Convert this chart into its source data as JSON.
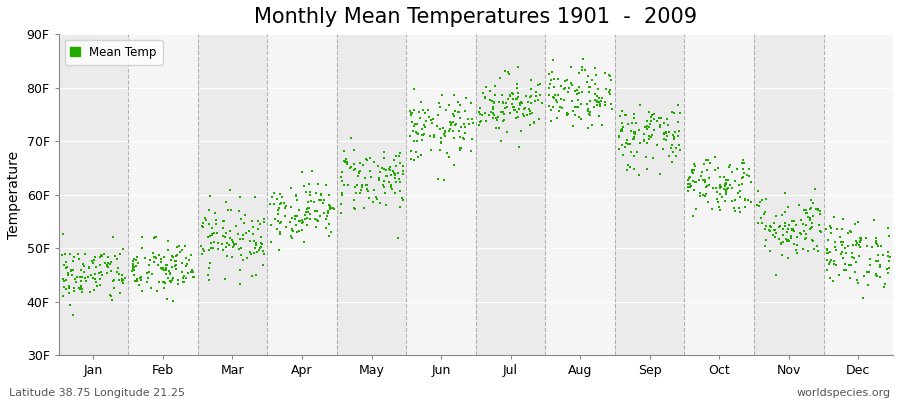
{
  "title": "Monthly Mean Temperatures 1901  -  2009",
  "ylabel": "Temperature",
  "xlabel": "",
  "ylim": [
    30,
    90
  ],
  "yticks": [
    30,
    40,
    50,
    60,
    70,
    80,
    90
  ],
  "ytick_labels": [
    "30F",
    "40F",
    "50F",
    "60F",
    "70F",
    "80F",
    "90F"
  ],
  "months": [
    "Jan",
    "Feb",
    "Mar",
    "Apr",
    "May",
    "Jun",
    "Jul",
    "Aug",
    "Sep",
    "Oct",
    "Nov",
    "Dec"
  ],
  "month_centers": [
    1.5,
    2.5,
    3.5,
    4.5,
    5.5,
    6.5,
    7.5,
    8.5,
    9.5,
    10.5,
    11.5,
    12.5
  ],
  "month_means": [
    45,
    46,
    52,
    57,
    63,
    72,
    77,
    78,
    71,
    62,
    54,
    49
  ],
  "month_stds": [
    2.8,
    2.8,
    3.2,
    2.8,
    3.2,
    3.2,
    2.8,
    2.8,
    3.2,
    2.8,
    3.2,
    3.2
  ],
  "n_years": 109,
  "dot_color": "#22aa00",
  "dot_size": 3,
  "background_color": "#ffffff",
  "plot_bg_color": "#f0f0f0",
  "grid_color": "#888888",
  "legend_label": "Mean Temp",
  "subtitle_left": "Latitude 38.75 Longitude 21.25",
  "subtitle_right": "worldspecies.org",
  "title_fontsize": 15,
  "axis_fontsize": 10,
  "tick_fontsize": 9,
  "band_colors": [
    "#ebebeb",
    "#f5f5f5"
  ]
}
